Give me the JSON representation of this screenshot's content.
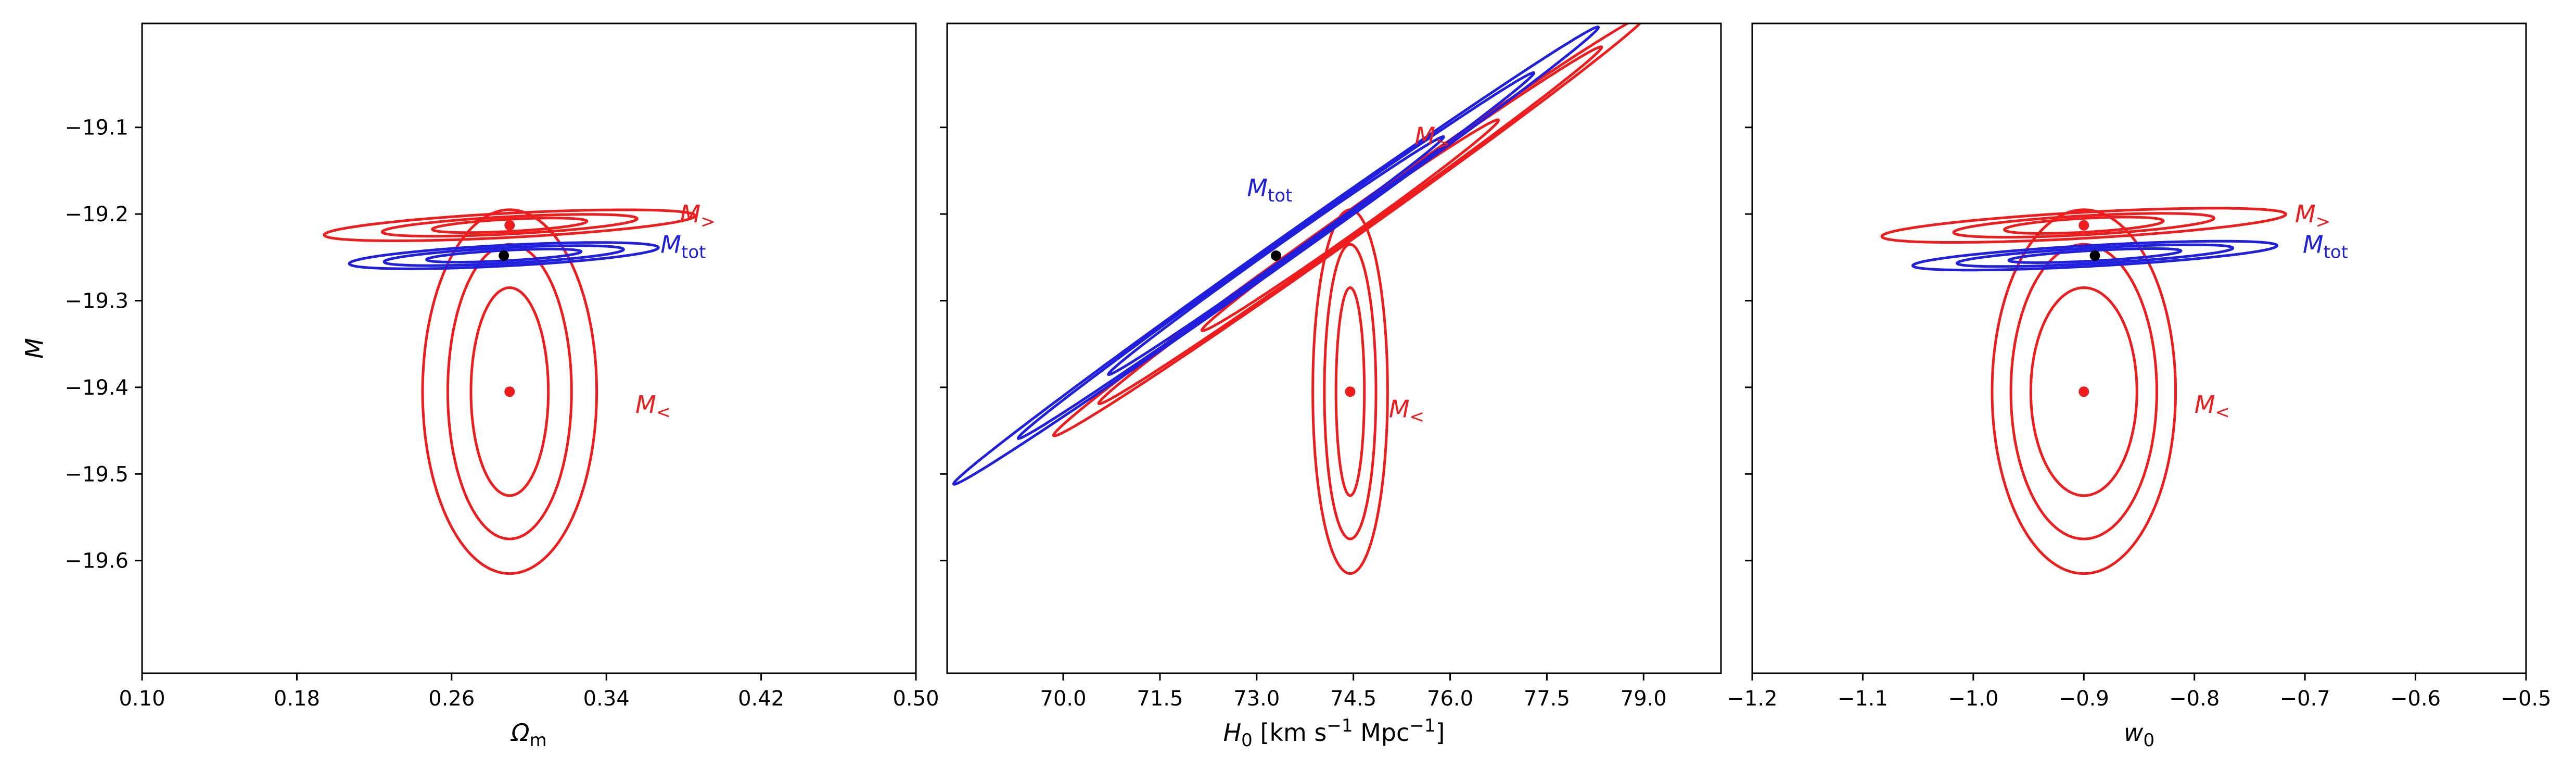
{
  "colors": {
    "red": "#ee1c1c",
    "blue": "#1f1fdd",
    "black": "#000000"
  },
  "chart_data": [
    {
      "type": "contour",
      "xlabel": "Ω",
      "xlabel_sub": "m",
      "ylabel": "M",
      "xlim": [
        0.1,
        0.5
      ],
      "ylim": [
        -19.73,
        -18.98
      ],
      "xticks": [
        0.1,
        0.18,
        0.26,
        0.34,
        0.42,
        0.5
      ],
      "xtick_labels": [
        "0.10",
        "0.18",
        "0.26",
        "0.34",
        "0.42",
        "0.50"
      ],
      "yticks": [
        -19.1,
        -19.2,
        -19.3,
        -19.4,
        -19.5,
        -19.6
      ],
      "ytick_labels": [
        "−19.1",
        "−19.2",
        "−19.3",
        "−19.4",
        "−19.5",
        "−19.6"
      ],
      "show_ytick_labels": true,
      "series": [
        {
          "name": "M_<",
          "color": "red",
          "center": [
            0.29,
            -19.405
          ],
          "ellipses": [
            {
              "rx": 0.02,
              "ry": 0.12,
              "angle": 0
            },
            {
              "rx": 0.032,
              "ry": 0.17,
              "angle": 0
            },
            {
              "rx": 0.045,
              "ry": 0.21,
              "angle": 0
            }
          ]
        },
        {
          "name": "M_>",
          "color": "red",
          "center": [
            0.29,
            -19.213
          ],
          "ellipses": [
            {
              "rx": 0.04,
              "ry": 0.007,
              "angle": 0.052
            },
            {
              "rx": 0.066,
              "ry": 0.01,
              "angle": 0.052
            },
            {
              "rx": 0.096,
              "ry": 0.014,
              "angle": 0.052
            }
          ]
        },
        {
          "name": "M_tot",
          "color": "blue",
          "center": [
            0.287,
            -19.248
          ],
          "ellipses": [
            {
              "rx": 0.04,
              "ry": 0.006,
              "angle": 0.052
            },
            {
              "rx": 0.062,
              "ry": 0.009,
              "angle": 0.052
            },
            {
              "rx": 0.08,
              "ry": 0.012,
              "angle": 0.052
            }
          ]
        }
      ],
      "points": [
        {
          "x": 0.29,
          "y": -19.405,
          "color": "red"
        },
        {
          "x": 0.29,
          "y": -19.213,
          "color": "red"
        },
        {
          "x": 0.287,
          "y": -19.248,
          "color": "black"
        }
      ],
      "annotations": [
        {
          "text": "M",
          "sub": "<",
          "x": 0.355,
          "y": -19.42,
          "color": "red"
        },
        {
          "text": "M",
          "sub": ">",
          "x": 0.378,
          "y": -19.2,
          "color": "red"
        },
        {
          "text": "M",
          "sub": "tot",
          "x": 0.368,
          "y": -19.235,
          "color": "blue"
        }
      ]
    },
    {
      "type": "contour",
      "xlabel": "H",
      "xlabel_sub": "0",
      "xlabel_unit": "[km s",
      "xlabel_exp1": "−1",
      "xlabel_unit2": "Mpc",
      "xlabel_exp2": "−1",
      "xlabel_end": "]",
      "ylabel": "",
      "xlim": [
        68.2,
        80.2
      ],
      "ylim": [
        -19.73,
        -18.98
      ],
      "xticks": [
        70.0,
        71.5,
        73.0,
        74.5,
        76.0,
        77.5,
        79.0
      ],
      "xtick_labels": [
        "70.0",
        "71.5",
        "73.0",
        "74.5",
        "76.0",
        "77.5",
        "79.0"
      ],
      "yticks": [
        -19.1,
        -19.2,
        -19.3,
        -19.4,
        -19.5,
        -19.6
      ],
      "ytick_labels": [
        "",
        "",
        "",
        "",
        "",
        ""
      ],
      "show_ytick_labels": false,
      "series": [
        {
          "name": "M_<",
          "color": "red",
          "center": [
            74.45,
            -19.405
          ],
          "ellipses": [
            {
              "rx": 0.22,
              "ry": 0.12,
              "angle": 0
            },
            {
              "rx": 0.4,
              "ry": 0.17,
              "angle": 0
            },
            {
              "rx": 0.58,
              "ry": 0.21,
              "angle": 0
            }
          ]
        },
        {
          "name": "M_>",
          "color": "red",
          "center": [
            74.45,
            -19.213
          ],
          "ellipses": [
            {
              "rx": 2.3,
              "ry": 0.012,
              "slope": 0.0527
            },
            {
              "rx": 3.9,
              "ry": 0.015,
              "slope": 0.0527
            },
            {
              "rx": 4.6,
              "ry": 0.018,
              "slope": 0.0527
            }
          ]
        },
        {
          "name": "M_tot",
          "color": "blue",
          "center": [
            73.3,
            -19.248
          ],
          "ellipses": [
            {
              "rx": 2.6,
              "ry": 0.01,
              "slope": 0.0527
            },
            {
              "rx": 4.0,
              "ry": 0.013,
              "slope": 0.0527
            },
            {
              "rx": 5.0,
              "ry": 0.016,
              "slope": 0.0527
            }
          ]
        }
      ],
      "points": [
        {
          "x": 74.45,
          "y": -19.405,
          "color": "red"
        },
        {
          "x": 73.3,
          "y": -19.248,
          "color": "black"
        }
      ],
      "annotations": [
        {
          "text": "M",
          "sub": "<",
          "x": 75.05,
          "y": -19.425,
          "color": "red"
        },
        {
          "text": "M",
          "sub": ">",
          "x": 75.45,
          "y": -19.11,
          "color": "red"
        },
        {
          "text": "M",
          "sub": "tot",
          "x": 72.85,
          "y": -19.17,
          "color": "blue"
        }
      ]
    },
    {
      "type": "contour",
      "xlabel": "w",
      "xlabel_sub": "0",
      "ylabel": "",
      "xlim": [
        -1.2,
        -0.5
      ],
      "ylim": [
        -19.73,
        -18.98
      ],
      "xticks": [
        -1.2,
        -1.1,
        -1.0,
        -0.9,
        -0.8,
        -0.7,
        -0.6,
        -0.5
      ],
      "xtick_labels": [
        "−1.2",
        "−1.1",
        "−1.0",
        "−0.9",
        "−0.8",
        "−0.7",
        "−0.6",
        "−0.5"
      ],
      "yticks": [
        -19.1,
        -19.2,
        -19.3,
        -19.4,
        -19.5,
        -19.6
      ],
      "ytick_labels": [
        "",
        "",
        "",
        "",
        "",
        ""
      ],
      "show_ytick_labels": false,
      "series": [
        {
          "name": "M_<",
          "color": "red",
          "center": [
            -0.9,
            -19.405
          ],
          "ellipses": [
            {
              "rx": 0.048,
              "ry": 0.12,
              "angle": 0
            },
            {
              "rx": 0.066,
              "ry": 0.17,
              "angle": 0
            },
            {
              "rx": 0.083,
              "ry": 0.21,
              "angle": 0
            }
          ]
        },
        {
          "name": "M_>",
          "color": "red",
          "center": [
            -0.9,
            -19.213
          ],
          "ellipses": [
            {
              "rx": 0.072,
              "ry": 0.008,
              "angle": 0.055
            },
            {
              "rx": 0.118,
              "ry": 0.011,
              "angle": 0.055
            },
            {
              "rx": 0.183,
              "ry": 0.015,
              "angle": 0.055
            }
          ]
        },
        {
          "name": "M_tot",
          "color": "blue",
          "center": [
            -0.89,
            -19.248
          ],
          "ellipses": [
            {
              "rx": 0.078,
              "ry": 0.006,
              "angle": 0.055
            },
            {
              "rx": 0.125,
              "ry": 0.009,
              "angle": 0.055
            },
            {
              "rx": 0.165,
              "ry": 0.012,
              "angle": 0.055
            }
          ]
        }
      ],
      "points": [
        {
          "x": -0.9,
          "y": -19.405,
          "color": "red"
        },
        {
          "x": -0.9,
          "y": -19.213,
          "color": "red"
        },
        {
          "x": -0.89,
          "y": -19.248,
          "color": "black"
        }
      ],
      "annotations": [
        {
          "text": "M",
          "sub": "<",
          "x": -0.8,
          "y": -19.42,
          "color": "red"
        },
        {
          "text": "M",
          "sub": ">",
          "x": -0.709,
          "y": -19.2,
          "color": "red"
        },
        {
          "text": "M",
          "sub": "tot",
          "x": -0.702,
          "y": -19.235,
          "color": "blue"
        }
      ]
    }
  ]
}
